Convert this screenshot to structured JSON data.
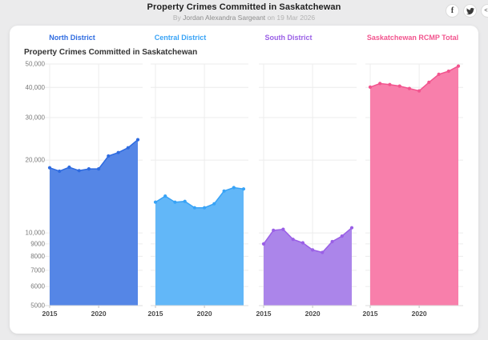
{
  "page": {
    "title": "Property Crimes Committed in Saskatchewan",
    "byline_prefix": "By",
    "author": "Jordan Alexandra Sargeant",
    "byline_connector": "on",
    "date": "19 Mar 2026",
    "social": {
      "facebook_label": "f",
      "embed_label": "<>"
    }
  },
  "card": {
    "chart_title": "Property Crimes Committed in Saskatchewan"
  },
  "chart_data": {
    "type": "area",
    "y_scale": "log",
    "title": "Property Crimes Committed in Saskatchewan",
    "x": [
      2015,
      2016,
      2017,
      2018,
      2019,
      2020,
      2021,
      2022,
      2023,
      2024
    ],
    "x_tick_years": [
      2015,
      2020
    ],
    "x_tick_labels": [
      "2015",
      "2020"
    ],
    "ylim": [
      5000,
      50000
    ],
    "y_ticks": [
      5000,
      6000,
      7000,
      8000,
      9000,
      10000,
      20000,
      30000,
      40000,
      50000
    ],
    "y_tick_labels": [
      "5000",
      "6000",
      "7000",
      "8000",
      "9000",
      "10,000",
      "20,000",
      "30,000",
      "40,000",
      "50,000"
    ],
    "grid": true,
    "legend_position": "facet-headers",
    "series": [
      {
        "name": "North District",
        "label_color": "#2e6be0",
        "line_color": "#2e6be0",
        "fill_color": "#5586e6",
        "values": [
          18600,
          18000,
          18700,
          18100,
          18400,
          18400,
          20800,
          21500,
          22500,
          24300
        ]
      },
      {
        "name": "Central District",
        "label_color": "#38a3f6",
        "line_color": "#38a3f6",
        "fill_color": "#62b7f8",
        "values": [
          13400,
          14200,
          13400,
          13500,
          12700,
          12700,
          13200,
          14900,
          15400,
          15200
        ]
      },
      {
        "name": "South District",
        "label_color": "#9a5fe6",
        "line_color": "#9a5fe6",
        "fill_color": "#ab85ea",
        "values": [
          9000,
          10250,
          10350,
          9400,
          9100,
          8500,
          8300,
          9200,
          9700,
          10500
        ]
      },
      {
        "name": "Saskatchewan RCMP Total",
        "label_color": "#f2548e",
        "line_color": "#f2548e",
        "fill_color": "#f87fab",
        "values": [
          40100,
          41500,
          41100,
          40500,
          39600,
          38700,
          42000,
          45300,
          46700,
          49000
        ]
      }
    ],
    "style": {
      "grid_color": "#ececec",
      "axis_color": "#dddddd",
      "tick_color": "#c4c4c4",
      "y_label_color": "#7a7a7a",
      "x_label_color": "#4a4a4a"
    }
  }
}
